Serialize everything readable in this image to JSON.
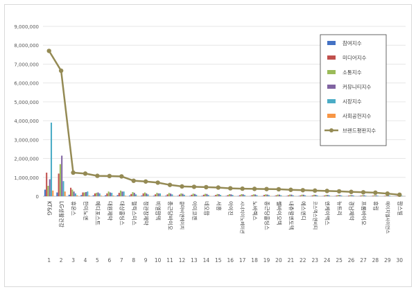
{
  "chart_data": {
    "type": "bar",
    "title": "",
    "xlabel": "",
    "ylabel": "",
    "ylim": [
      0,
      9000000
    ],
    "yticks": [
      "0",
      "1,000,000",
      "2,000,000",
      "3,000,000",
      "4,000,000",
      "5,000,000",
      "6,000,000",
      "7,000,000",
      "8,000,000",
      "9,000,000"
    ],
    "grid": true,
    "legend_position": "right",
    "ranks": [
      "1",
      "2",
      "3",
      "4",
      "5",
      "6",
      "7",
      "8",
      "9",
      "10",
      "11",
      "12",
      "13",
      "14",
      "15",
      "16",
      "17",
      "18",
      "19",
      "20",
      "21",
      "22",
      "23",
      "24",
      "25",
      "26",
      "27",
      "28",
      "29",
      "30"
    ],
    "categories": [
      "KT&G",
      "LG생활건강",
      "휴온스",
      "한미노엔",
      "메디포스트",
      "대원제약",
      "대상홀딩스",
      "헬릭스미스",
      "정관장제약",
      "비엘팜텍",
      "종근당바이오",
      "콜마비앤에이치",
      "아미코젠",
      "네오팜",
      "서흥",
      "아이진",
      "시너지이노베이션",
      "노바렉스",
      "종근당홀딩스",
      "쎌바이오텍",
      "내츄럴엔도텍",
      "에스엔디",
      "코스맥스엔비티",
      "엔케이맥스",
      "뉴트리",
      "경남제약",
      "프롬바이오",
      "휴림",
      "에이치엘사이언스",
      "팜스빌"
    ],
    "series": [
      {
        "name": "참여지수",
        "color": "#4472c4",
        "values": [
          350000,
          200000,
          80000,
          60000,
          50000,
          50000,
          60000,
          40000,
          40000,
          30000,
          30000,
          25000,
          25000,
          25000,
          20000,
          20000,
          20000,
          18000,
          18000,
          15000,
          15000,
          15000,
          12000,
          12000,
          12000,
          10000,
          10000,
          10000,
          8000,
          8000
        ]
      },
      {
        "name": "미디어지수",
        "color": "#c0504d",
        "values": [
          1250000,
          1200000,
          450000,
          200000,
          150000,
          150000,
          180000,
          120000,
          150000,
          100000,
          100000,
          90000,
          80000,
          80000,
          70000,
          60000,
          60000,
          60000,
          70000,
          50000,
          50000,
          45000,
          45000,
          40000,
          40000,
          35000,
          35000,
          30000,
          25000,
          20000
        ]
      },
      {
        "name": "소통지수",
        "color": "#9bbb59",
        "values": [
          550000,
          1700000,
          350000,
          200000,
          180000,
          250000,
          300000,
          220000,
          200000,
          180000,
          170000,
          150000,
          140000,
          130000,
          120000,
          110000,
          110000,
          100000,
          100000,
          90000,
          90000,
          85000,
          80000,
          75000,
          70000,
          65000,
          60000,
          55000,
          45000,
          35000
        ]
      },
      {
        "name": "커뮤니티지수",
        "color": "#8064a2",
        "values": [
          900000,
          2150000,
          250000,
          220000,
          200000,
          200000,
          250000,
          180000,
          150000,
          150000,
          140000,
          130000,
          120000,
          120000,
          110000,
          100000,
          100000,
          95000,
          90000,
          85000,
          85000,
          80000,
          75000,
          70000,
          65000,
          60000,
          55000,
          50000,
          40000,
          30000
        ]
      },
      {
        "name": "시장지수",
        "color": "#4bacc6",
        "values": [
          3900000,
          800000,
          150000,
          250000,
          150000,
          180000,
          250000,
          100000,
          100000,
          150000,
          100000,
          80000,
          80000,
          70000,
          70000,
          70000,
          60000,
          60000,
          60000,
          50000,
          50000,
          50000,
          45000,
          45000,
          40000,
          40000,
          35000,
          30000,
          30000,
          25000
        ]
      },
      {
        "name": "사회공헌지수",
        "color": "#f79646",
        "values": [
          300000,
          250000,
          50000,
          40000,
          30000,
          40000,
          30000,
          20000,
          20000,
          15000,
          15000,
          15000,
          15000,
          12000,
          12000,
          10000,
          10000,
          10000,
          10000,
          8000,
          8000,
          8000,
          8000,
          7000,
          7000,
          6000,
          6000,
          5000,
          5000,
          5000
        ]
      },
      {
        "name": "브랜드평판지수",
        "color": "#948a54",
        "type": "line",
        "values": [
          7700000,
          6650000,
          1250000,
          1200000,
          1080000,
          1070000,
          1050000,
          820000,
          780000,
          720000,
          600000,
          520000,
          500000,
          480000,
          460000,
          420000,
          400000,
          390000,
          380000,
          370000,
          340000,
          320000,
          300000,
          280000,
          260000,
          230000,
          210000,
          190000,
          140000,
          80000
        ]
      }
    ]
  }
}
